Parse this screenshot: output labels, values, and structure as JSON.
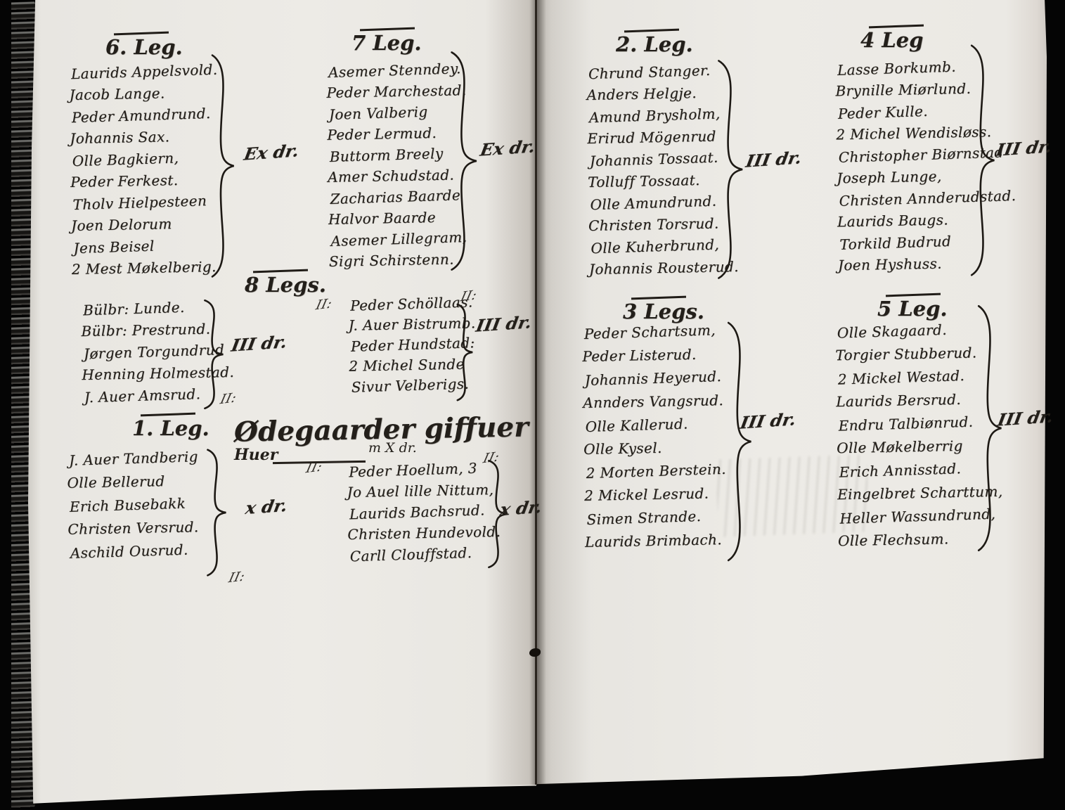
{
  "palette": {
    "background": "#050505",
    "paper": "#edebe6",
    "ink": "#231f1a"
  },
  "groups": {
    "leg6": {
      "header": "6. Leg.",
      "names": [
        "Laurids Appelsvold.",
        "Jacob Lange.",
        "Peder Amundrund.",
        "Johannis Sax.",
        "Olle Bagkiern,",
        "Peder Ferkest.",
        "Tholv Hielpesteen",
        "Joen Delorum",
        "Jens Beisel",
        "2 Mest Møkelberig."
      ],
      "annotation": "Ex dr."
    },
    "bulbr": {
      "names": [
        "Bülbr: Lunde.",
        "Bülbr: Prestrund.",
        "Jørgen Torgundrud",
        "Henning Holmestad.",
        "J. Auer Amsrud."
      ],
      "annotation": "III dr.",
      "footnote": "II:"
    },
    "leg1": {
      "header": "1. Leg.",
      "names": [
        "J. Auer Tandberig",
        "Olle Bellerud",
        "Erich Busebakk",
        "Christen Versrud.",
        "Aschild Ousrud."
      ],
      "annotation": "x dr.",
      "footnote": "II:"
    },
    "leg7": {
      "header": "7 Leg.",
      "names": [
        "Asemer Stenndey.",
        "Peder Marchestad.",
        "Joen Valberig",
        "Peder Lermud.",
        "Buttorm Breely",
        "Amer Schudstad.",
        "Zacharias Baarde",
        "Halvor Baarde",
        "Asemer Lillegram,",
        "Sigri Schirstenn."
      ],
      "annotation": "Ex dr."
    },
    "leg8": {
      "header": "8 Legs.",
      "names": [
        "Peder Schöllaas.",
        "J. Auer Bistrumb.",
        "Peder Hundstad:",
        "2 Michel Sunde",
        "Sivur Velberigs."
      ],
      "annotation": "III dr.",
      "mark_left": "II:",
      "mark_right": "II:"
    },
    "odegaarder": {
      "heading": "Ødegaarder giffuer",
      "huer_label": "Huer",
      "rate_note": "m X dr.",
      "names": [
        "Peder Hoellum, 3",
        "Jo Auel lille Nittum,",
        "Laurids Bachsrud.",
        "Christen Hundevold.",
        "Carll Clouffstad."
      ],
      "annotation": "x dr.",
      "mark_left": "II:",
      "mark_right": "II:"
    },
    "leg2": {
      "header": "2. Leg.",
      "names": [
        "Chrund Stanger.",
        "Anders Helgje.",
        "Amund Brysholm,",
        "Erirud Mögenrud",
        "Johannis Tossaat.",
        "Tolluff Tossaat.",
        "Olle Amundrund.",
        "Christen Torsrud.",
        "Olle Kuherbrund,",
        "Johannis Rousterud."
      ],
      "annotation": "III dr."
    },
    "leg3": {
      "header": "3 Legs.",
      "names": [
        "Peder Schartsum,",
        "Peder Listerud.",
        "Johannis Heyerud.",
        "Annders Vangsrud.",
        "Olle Kallerud.",
        "Olle Kysel.",
        "2 Morten Berstein.",
        "2 Mickel Lesrud.",
        "Simen Strande.",
        "Laurids Brimbach."
      ],
      "annotation": "III dr."
    },
    "leg4": {
      "header": "4 Leg",
      "names": [
        "Lasse Borkumb.",
        "Brynille Miørlund.",
        "Peder Kulle.",
        "2 Michel Wendisløss.",
        "Christopher Biørnstad",
        "Joseph Lunge,",
        "Christen Annderudstad.",
        "Laurids Baugs.",
        "Torkild Budrud",
        "Joen Hyshuss."
      ],
      "annotation": "III dr."
    },
    "leg5": {
      "header": "5 Leg.",
      "names": [
        "Olle Skagaard.",
        "Torgier Stubberud.",
        "2 Mickel Westad.",
        "Laurids Bersrud.",
        "Endru Talbiønrud.",
        "Olle Møkelberrig",
        "Erich Annisstad.",
        "Eingelbret Scharttum,",
        "Heller Wassundrund,",
        "Olle Flechsum."
      ],
      "annotation": "III dr."
    }
  }
}
